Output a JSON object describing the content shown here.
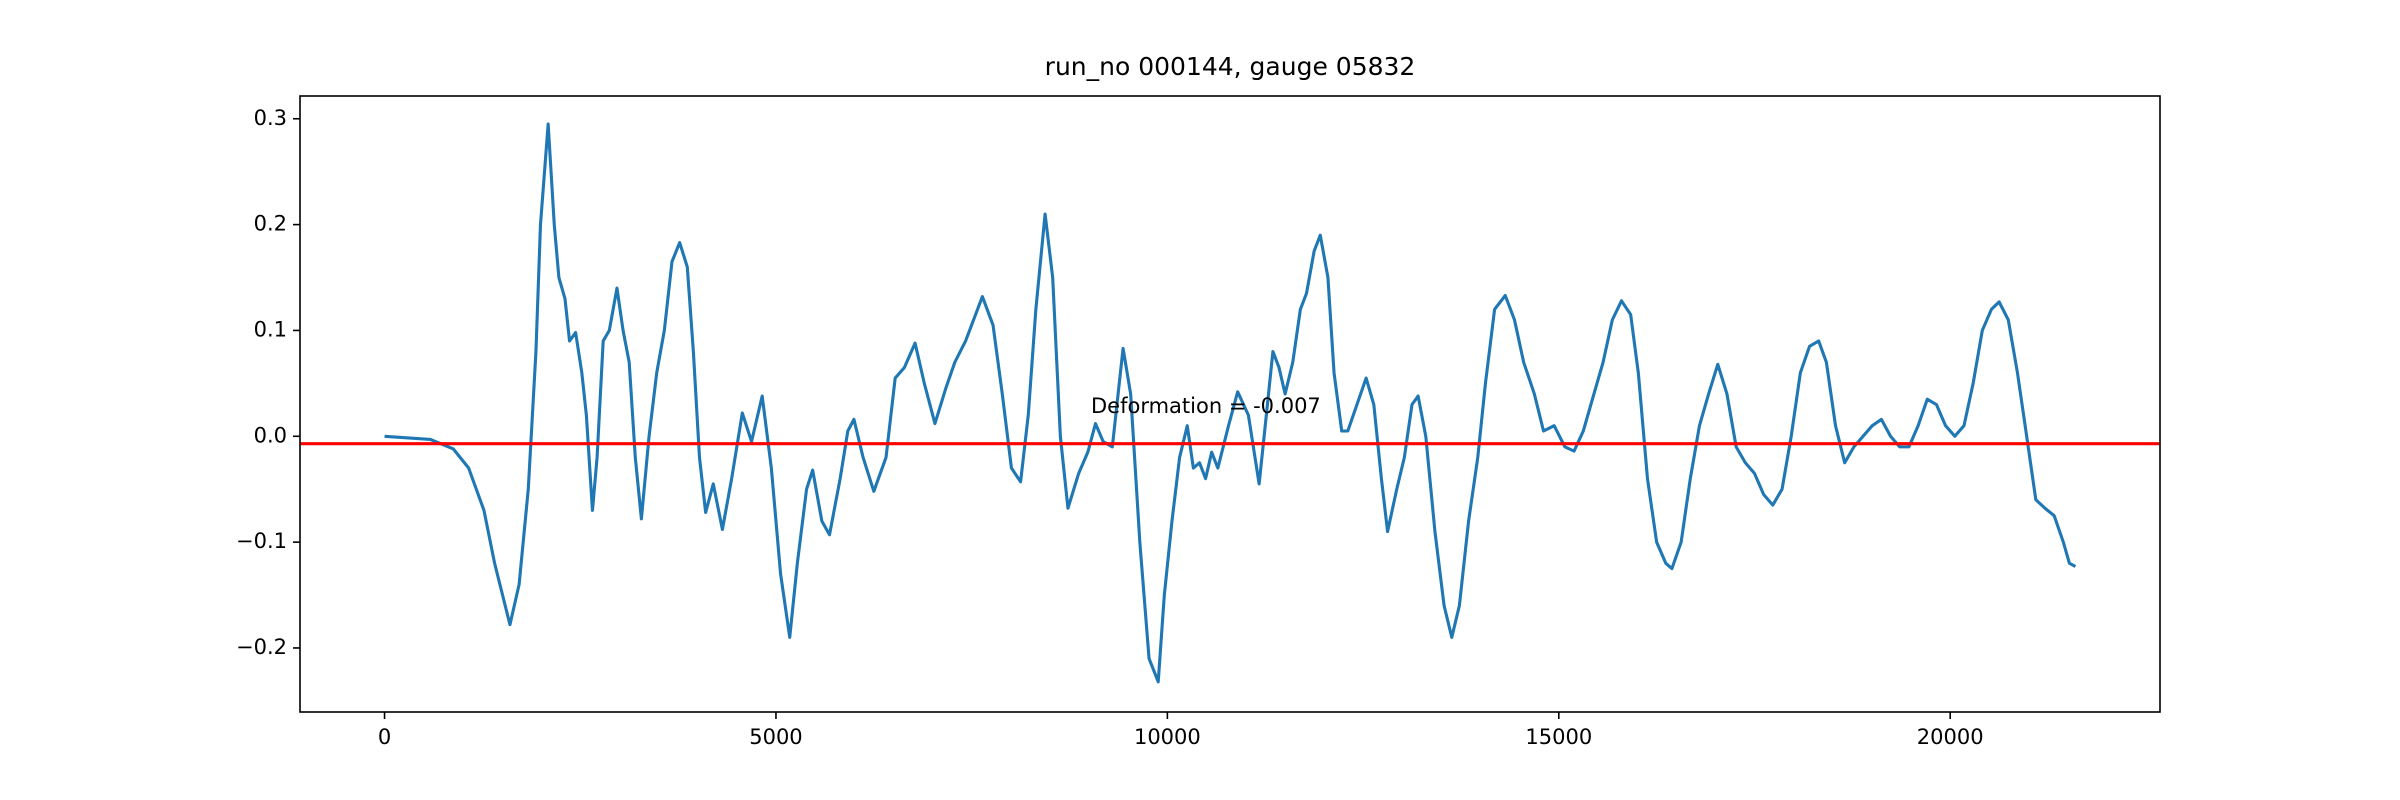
{
  "chart_data": {
    "type": "line",
    "title": "run_no 000144, gauge 05832",
    "x": [
      0,
      586,
      879,
      1074,
      1270,
      1406,
      1602,
      1719,
      1836,
      1934,
      1992,
      2090,
      2168,
      2227,
      2305,
      2363,
      2441,
      2520,
      2578,
      2656,
      2715,
      2793,
      2871,
      2969,
      3047,
      3125,
      3203,
      3281,
      3379,
      3477,
      3574,
      3672,
      3770,
      3867,
      3945,
      4023,
      4102,
      4199,
      4316,
      4434,
      4570,
      4688,
      4824,
      4941,
      5059,
      5176,
      5273,
      5391,
      5469,
      5586,
      5684,
      5820,
      5918,
      5996,
      6113,
      6250,
      6406,
      6523,
      6641,
      6777,
      6895,
      7031,
      7168,
      7285,
      7422,
      7637,
      7773,
      7891,
      8008,
      8125,
      8223,
      8320,
      8438,
      8535,
      8633,
      8730,
      8867,
      8984,
      9082,
      9180,
      9297,
      9434,
      9531,
      9648,
      9766,
      9883,
      9961,
      10059,
      10156,
      10254,
      10332,
      10410,
      10488,
      10566,
      10645,
      10781,
      10898,
      11035,
      11172,
      11250,
      11348,
      11426,
      11504,
      11602,
      11699,
      11777,
      11875,
      11953,
      12051,
      12129,
      12227,
      12305,
      12422,
      12539,
      12637,
      12734,
      12813,
      12930,
      13027,
      13125,
      13203,
      13301,
      13418,
      13535,
      13633,
      13730,
      13848,
      13965,
      14063,
      14180,
      14316,
      14434,
      14551,
      14688,
      14805,
      14941,
      15078,
      15195,
      15313,
      15449,
      15566,
      15684,
      15801,
      15918,
      16016,
      16133,
      16250,
      16367,
      16445,
      16563,
      16680,
      16797,
      16914,
      17031,
      17148,
      17266,
      17383,
      17500,
      17617,
      17734,
      17852,
      17969,
      18086,
      18203,
      18320,
      18418,
      18535,
      18652,
      18770,
      18887,
      19004,
      19121,
      19238,
      19355,
      19473,
      19590,
      19707,
      19824,
      19941,
      20059,
      20176,
      20293,
      20410,
      20527,
      20625,
      20742,
      20859,
      20977,
      21094,
      21211,
      21328,
      21445,
      21523,
      21600
    ],
    "series": [
      {
        "color": "#1f77b4",
        "values": [
          0,
          -0.003,
          -0.012,
          -0.03,
          -0.07,
          -0.12,
          -0.178,
          -0.14,
          -0.05,
          0.08,
          0.2,
          0.295,
          0.2,
          0.15,
          0.13,
          0.09,
          0.098,
          0.06,
          0.02,
          -0.07,
          -0.02,
          0.09,
          0.1,
          0.14,
          0.1,
          0.07,
          -0.02,
          -0.078,
          0,
          0.06,
          0.1,
          0.165,
          0.183,
          0.16,
          0.08,
          -0.02,
          -0.072,
          -0.045,
          -0.088,
          -0.04,
          0.022,
          -0.005,
          0.038,
          -0.03,
          -0.13,
          -0.19,
          -0.12,
          -0.05,
          -0.032,
          -0.08,
          -0.093,
          -0.04,
          0.005,
          0.016,
          -0.02,
          -0.052,
          -0.02,
          0.055,
          0.065,
          0.088,
          0.05,
          0.012,
          0.045,
          0.07,
          0.09,
          0.132,
          0.105,
          0.04,
          -0.03,
          -0.043,
          0.02,
          0.12,
          0.21,
          0.15,
          0,
          -0.068,
          -0.035,
          -0.015,
          0.012,
          -0.005,
          -0.01,
          0.083,
          0.04,
          -0.1,
          -0.21,
          -0.232,
          -0.15,
          -0.08,
          -0.02,
          0.01,
          -0.03,
          -0.025,
          -0.04,
          -0.015,
          -0.03,
          0.01,
          0.042,
          0.02,
          -0.045,
          0.01,
          0.08,
          0.065,
          0.04,
          0.07,
          0.12,
          0.135,
          0.175,
          0.19,
          0.15,
          0.06,
          0.005,
          0.005,
          0.03,
          0.055,
          0.03,
          -0.04,
          -0.09,
          -0.05,
          -0.02,
          0.03,
          0.038,
          0,
          -0.09,
          -0.16,
          -0.19,
          -0.16,
          -0.08,
          -0.02,
          0.05,
          0.12,
          0.133,
          0.11,
          0.07,
          0.04,
          0.005,
          0.01,
          -0.01,
          -0.014,
          0.005,
          0.04,
          0.07,
          0.11,
          0.128,
          0.115,
          0.06,
          -0.04,
          -0.1,
          -0.12,
          -0.125,
          -0.1,
          -0.04,
          0.01,
          0.04,
          0.068,
          0.04,
          -0.01,
          -0.025,
          -0.035,
          -0.055,
          -0.065,
          -0.05,
          0,
          0.06,
          0.085,
          0.09,
          0.07,
          0.01,
          -0.025,
          -0.01,
          0,
          0.01,
          0.016,
          0,
          -0.01,
          -0.01,
          0.01,
          0.035,
          0.03,
          0.01,
          0,
          0.01,
          0.05,
          0.1,
          0.12,
          0.127,
          0.11,
          0.06,
          0,
          -0.06,
          -0.068,
          -0.075,
          -0.1,
          -0.12,
          -0.123
        ]
      }
    ],
    "xlim": [
      -1080,
      22680
    ],
    "xticks": [
      0,
      5000,
      10000,
      15000,
      20000
    ],
    "ylim": [
      -0.2605,
      0.3215
    ],
    "yticks": [
      {
        "value": -0.2,
        "label": "−0.2"
      },
      {
        "value": -0.1,
        "label": "−0.1"
      },
      {
        "value": 0,
        "label": "0.0"
      },
      0.1,
      0.2,
      0.3
    ],
    "hline": {
      "value": -0.007,
      "color": "#ff0000"
    },
    "annotation": "Deformation = -0.007"
  }
}
